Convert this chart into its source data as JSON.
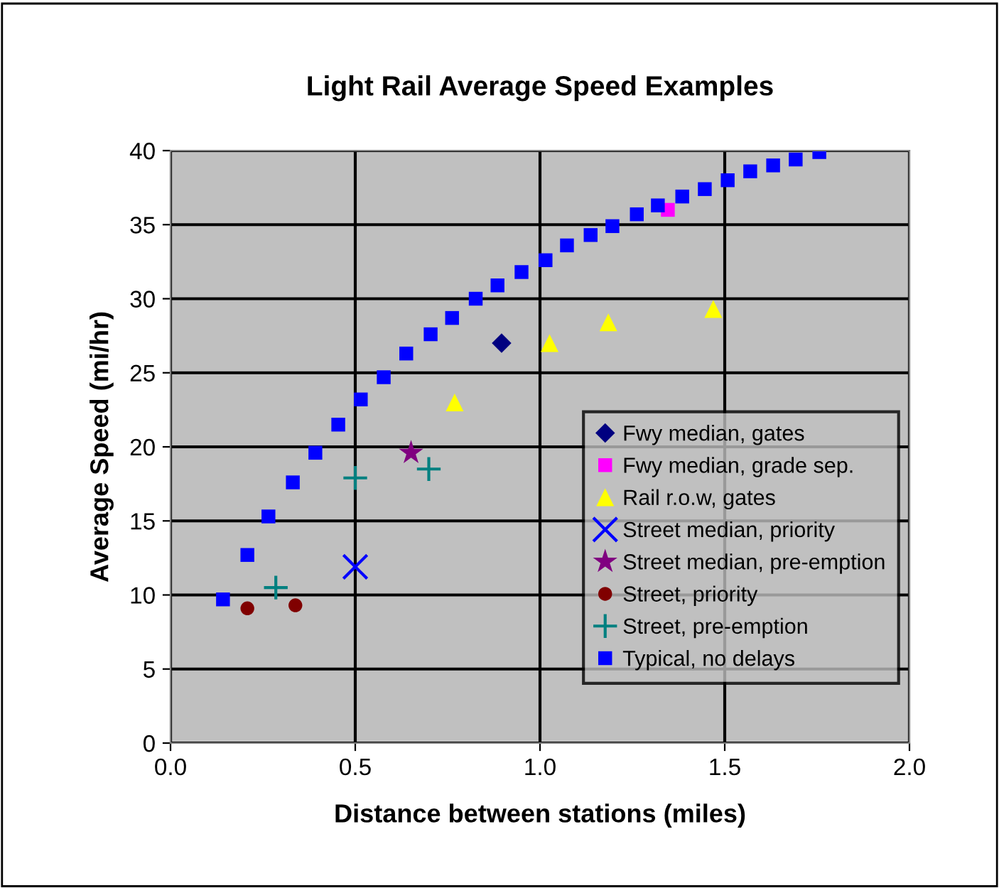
{
  "chart_data": {
    "type": "scatter",
    "title": "Light Rail Average Speed Examples",
    "xlabel": "Distance between stations (miles)",
    "ylabel": "Average Speed (mi/hr)",
    "xlim": [
      0,
      2
    ],
    "xticks": [
      {
        "value": 0,
        "label": "0.0"
      },
      {
        "value": 0.5,
        "label": "0.5"
      },
      {
        "value": 1,
        "label": "1.0"
      },
      {
        "value": 1.5,
        "label": "1.5"
      },
      {
        "value": 2,
        "label": "2.0"
      }
    ],
    "ylim": [
      0,
      40
    ],
    "yticks": [
      0,
      5,
      10,
      15,
      20,
      25,
      30,
      35,
      40
    ],
    "grid": true,
    "legend": "right",
    "series": [
      {
        "name": "Fwy median, gates",
        "color": "#000080",
        "marker": "diamond",
        "x": [
          0.896
        ],
        "values": [
          27.0
        ]
      },
      {
        "name": "Fwy median, grade sep.",
        "color": "#ff00ff",
        "marker": "square",
        "x": [
          1.346
        ],
        "values": [
          36.0
        ]
      },
      {
        "name": "Rail r.o.w, gates",
        "color": "#ffff00",
        "marker": "triangle",
        "x": [
          0.769,
          1.026,
          1.185,
          1.469
        ],
        "values": [
          23.0,
          27.0,
          28.4,
          29.3
        ]
      },
      {
        "name": "Street median, priority",
        "color": "#0000ff",
        "marker": "cross",
        "x": [
          0.5
        ],
        "values": [
          11.9
        ]
      },
      {
        "name": "Street median, pre-emption",
        "color": "#800080",
        "marker": "star",
        "x": [
          0.651
        ],
        "values": [
          19.6
        ]
      },
      {
        "name": "Street, priority",
        "color": "#800000",
        "marker": "circle",
        "x": [
          0.208,
          0.338
        ],
        "values": [
          9.1,
          9.3
        ]
      },
      {
        "name": "Street, pre-emption",
        "color": "#008080",
        "marker": "plus",
        "x": [
          0.285,
          0.5,
          0.699
        ],
        "values": [
          10.5,
          17.9,
          18.5
        ]
      },
      {
        "name": "Typical, no delays",
        "color": "#0000ff",
        "marker": "square",
        "x": [
          0.142,
          0.208,
          0.265,
          0.331,
          0.392,
          0.454,
          0.515,
          0.577,
          0.638,
          0.704,
          0.762,
          0.826,
          0.885,
          0.95,
          1.015,
          1.073,
          1.137,
          1.196,
          1.262,
          1.319,
          1.385,
          1.446,
          1.508,
          1.569,
          1.631,
          1.692,
          1.756
        ],
        "values": [
          9.7,
          12.7,
          15.3,
          17.6,
          19.6,
          21.5,
          23.2,
          24.7,
          26.3,
          27.6,
          28.7,
          30.0,
          30.9,
          31.8,
          32.6,
          33.6,
          34.3,
          34.9,
          35.7,
          36.3,
          36.9,
          37.4,
          38.0,
          38.6,
          39.0,
          39.4,
          39.9
        ]
      }
    ]
  }
}
